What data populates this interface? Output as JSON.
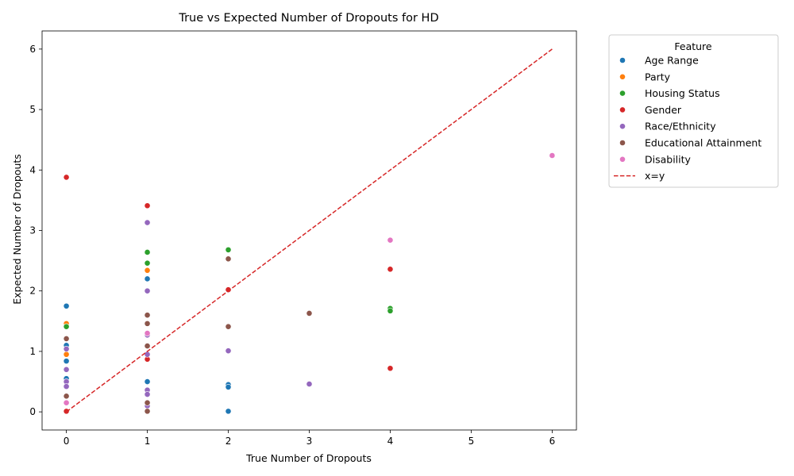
{
  "chart_data": {
    "type": "scatter",
    "title": "True vs Expected Number of Dropouts for HD",
    "xlabel": "True Number of Dropouts",
    "ylabel": "Expected Number of Dropouts",
    "xlim": [
      -0.3,
      6.3
    ],
    "ylim": [
      -0.3,
      6.3
    ],
    "xticks": [
      0,
      1,
      2,
      3,
      4,
      5,
      6
    ],
    "yticks": [
      0,
      1,
      2,
      3,
      4,
      5,
      6
    ],
    "grid": false,
    "legend": {
      "title": "Feature",
      "placement": "outside-top-right"
    },
    "reference_line": {
      "label": "x=y",
      "from": [
        0,
        0
      ],
      "to": [
        6,
        6
      ],
      "color": "#d62728",
      "style": "dashed"
    },
    "series": [
      {
        "name": "Age Range",
        "color": "#1f77b4",
        "points": [
          [
            0,
            1.75
          ],
          [
            0,
            1.1
          ],
          [
            0,
            0.84
          ],
          [
            0,
            0.55
          ],
          [
            1,
            2.2
          ],
          [
            1,
            0.5
          ],
          [
            2,
            0.45
          ],
          [
            2,
            0.41
          ],
          [
            2,
            0.01
          ]
        ]
      },
      {
        "name": "Party",
        "color": "#ff7f0e",
        "points": [
          [
            0,
            1.46
          ],
          [
            0,
            0.95
          ],
          [
            1,
            2.34
          ]
        ]
      },
      {
        "name": "Housing Status",
        "color": "#2ca02c",
        "points": [
          [
            0,
            1.41
          ],
          [
            1,
            2.64
          ],
          [
            1,
            2.46
          ],
          [
            2,
            2.68
          ],
          [
            4,
            1.71
          ],
          [
            4,
            1.67
          ]
        ]
      },
      {
        "name": "Gender",
        "color": "#d62728",
        "points": [
          [
            0,
            3.88
          ],
          [
            0,
            0.01
          ],
          [
            1,
            3.41
          ],
          [
            1,
            0.87
          ],
          [
            2,
            2.02
          ],
          [
            4,
            2.36
          ],
          [
            4,
            0.72
          ]
        ]
      },
      {
        "name": "Race/Ethnicity",
        "color": "#9467bd",
        "points": [
          [
            0,
            1.04
          ],
          [
            0,
            0.7
          ],
          [
            0,
            0.5
          ],
          [
            0,
            0.42
          ],
          [
            1,
            3.13
          ],
          [
            1,
            2.0
          ],
          [
            1,
            1.27
          ],
          [
            1,
            0.95
          ],
          [
            1,
            0.36
          ],
          [
            1,
            0.29
          ],
          [
            1,
            0.1
          ],
          [
            2,
            1.01
          ],
          [
            3,
            0.46
          ]
        ]
      },
      {
        "name": "Educational Attainment",
        "color": "#8c564b",
        "points": [
          [
            0,
            1.21
          ],
          [
            0,
            0.26
          ],
          [
            1,
            1.6
          ],
          [
            1,
            1.46
          ],
          [
            1,
            1.09
          ],
          [
            1,
            0.15
          ],
          [
            1,
            0.01
          ],
          [
            2,
            2.53
          ],
          [
            2,
            1.41
          ],
          [
            3,
            1.63
          ]
        ]
      },
      {
        "name": "Disability",
        "color": "#e377c2",
        "points": [
          [
            0,
            0.15
          ],
          [
            1,
            1.3
          ],
          [
            4,
            2.84
          ],
          [
            6,
            4.24
          ]
        ]
      }
    ]
  }
}
